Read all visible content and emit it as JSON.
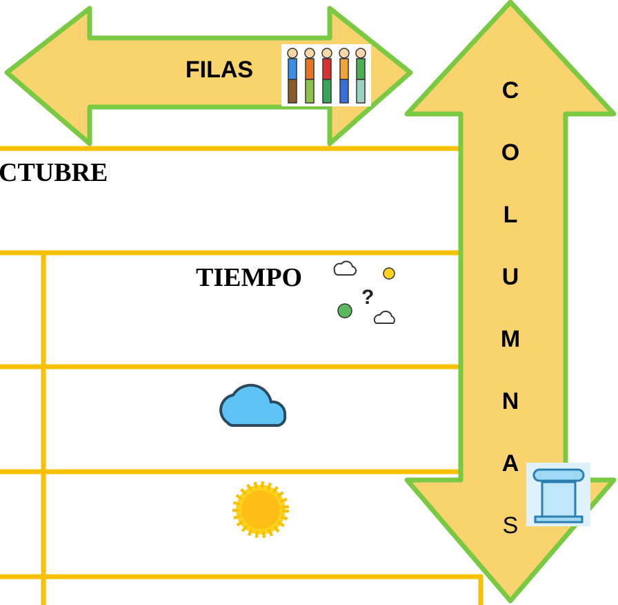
{
  "arrows": {
    "horizontal": "FILAS",
    "vertical": [
      "C",
      "O",
      "L",
      "U",
      "M",
      "N",
      "A",
      "S"
    ]
  },
  "table": {
    "title": "CTUBRE",
    "header": "TIEMPO"
  }
}
